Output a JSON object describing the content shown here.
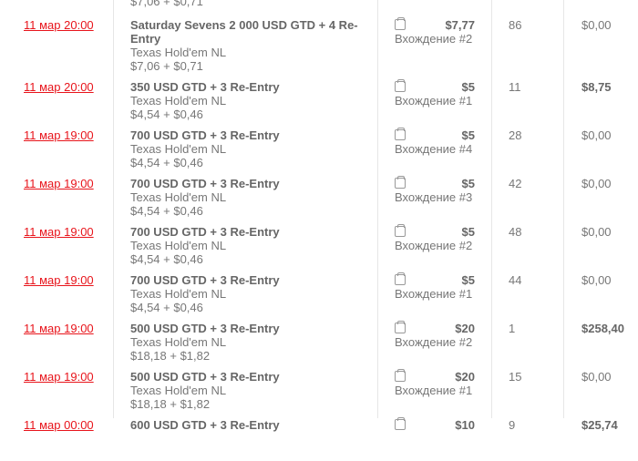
{
  "top_partial": {
    "fee": "$7,06 + $0,71"
  },
  "rows": [
    {
      "date": "11 мар 20:00",
      "title": "Saturday Sevens 2 000 USD GTD + 4 Re-Entry",
      "game": "Texas Hold'em NL",
      "fee": "$7,06 + $0,71",
      "price": "$7,77",
      "entry": "Вхождение #2",
      "count": "86",
      "won": "$0,00",
      "won_bold": false,
      "tall": true
    },
    {
      "date": "11 мар 20:00",
      "title": "350 USD GTD + 3 Re-Entry",
      "game": "Texas Hold'em NL",
      "fee": "$4,54 + $0,46",
      "price": "$5",
      "entry": "Вхождение #1",
      "count": "11",
      "won": "$8,75",
      "won_bold": true
    },
    {
      "date": "11 мар 19:00",
      "title": "700 USD GTD + 3 Re-Entry",
      "game": "Texas Hold'em NL",
      "fee": "$4,54 + $0,46",
      "price": "$5",
      "entry": "Вхождение #4",
      "count": "28",
      "won": "$0,00",
      "won_bold": false
    },
    {
      "date": "11 мар 19:00",
      "title": "700 USD GTD + 3 Re-Entry",
      "game": "Texas Hold'em NL",
      "fee": "$4,54 + $0,46",
      "price": "$5",
      "entry": "Вхождение #3",
      "count": "42",
      "won": "$0,00",
      "won_bold": false
    },
    {
      "date": "11 мар 19:00",
      "title": "700 USD GTD + 3 Re-Entry",
      "game": "Texas Hold'em NL",
      "fee": "$4,54 + $0,46",
      "price": "$5",
      "entry": "Вхождение #2",
      "count": "48",
      "won": "$0,00",
      "won_bold": false
    },
    {
      "date": "11 мар 19:00",
      "title": "700 USD GTD + 3 Re-Entry",
      "game": "Texas Hold'em NL",
      "fee": "$4,54 + $0,46",
      "price": "$5",
      "entry": "Вхождение #1",
      "count": "44",
      "won": "$0,00",
      "won_bold": false
    },
    {
      "date": "11 мар 19:00",
      "title": "500 USD GTD + 3 Re-Entry",
      "game": "Texas Hold'em NL",
      "fee": "$18,18 + $1,82",
      "price": "$20",
      "entry": "Вхождение #2",
      "count": "1",
      "won": "$258,40",
      "won_bold": true
    },
    {
      "date": "11 мар 19:00",
      "title": "500 USD GTD + 3 Re-Entry",
      "game": "Texas Hold'em NL",
      "fee": "$18,18 + $1,82",
      "price": "$20",
      "entry": "Вхождение #1",
      "count": "15",
      "won": "$0,00",
      "won_bold": false
    },
    {
      "date": "11 мар 00:00",
      "title": "600 USD GTD + 3 Re-Entry",
      "game": "",
      "fee": "",
      "price": "$10",
      "entry": "",
      "count": "9",
      "won": "$25,74",
      "won_bold": true
    }
  ],
  "icons": {
    "buyin": "wallet-icon"
  },
  "colors": {
    "date_link": "#e8141b",
    "text": "#777777"
  }
}
